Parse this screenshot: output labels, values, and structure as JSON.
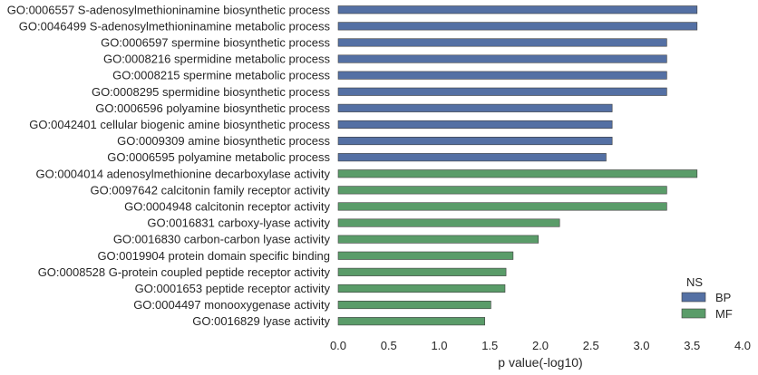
{
  "chart_data": {
    "type": "bar",
    "orientation": "horizontal",
    "xlabel": "p value(-log10)",
    "ylabel": "",
    "xlim": [
      0,
      4.0
    ],
    "x_ticks": [
      "0.0",
      "0.5",
      "1.0",
      "1.5",
      "2.0",
      "2.5",
      "3.0",
      "3.5",
      "4.0"
    ],
    "grid": false,
    "legend": {
      "title": "NS",
      "position": "bottom-right",
      "entries": [
        {
          "label": "BP",
          "color": "#5470a4"
        },
        {
          "label": "MF",
          "color": "#5a9c69"
        }
      ]
    },
    "series": [
      {
        "name": "BP",
        "color": "#5470a4",
        "categories": [
          "GO:0006557 S-adenosylmethioninamine biosynthetic process",
          "GO:0046499 S-adenosylmethioninamine metabolic process",
          "GO:0006597 spermine biosynthetic process",
          "GO:0008216 spermidine metabolic process",
          "GO:0008215 spermine metabolic process",
          "GO:0008295 spermidine biosynthetic process",
          "GO:0006596 polyamine biosynthetic process",
          "GO:0042401 cellular biogenic amine biosynthetic process",
          "GO:0009309 amine biosynthetic process",
          "GO:0006595 polyamine metabolic process"
        ],
        "values": [
          3.55,
          3.55,
          3.25,
          3.25,
          3.25,
          3.25,
          2.71,
          2.71,
          2.71,
          2.65
        ]
      },
      {
        "name": "MF",
        "color": "#5a9c69",
        "categories": [
          "GO:0004014 adenosylmethionine decarboxylase activity",
          "GO:0097642 calcitonin family receptor activity",
          "GO:0004948 calcitonin receptor activity",
          "GO:0016831 carboxy-lyase activity",
          "GO:0016830 carbon-carbon lyase activity",
          "GO:0019904 protein domain specific binding",
          "GO:0008528 G-protein coupled peptide receptor activity",
          "GO:0001653 peptide receptor activity",
          "GO:0004497 monooxygenase activity",
          "GO:0016829 lyase activity"
        ],
        "values": [
          3.55,
          3.25,
          3.25,
          2.19,
          1.98,
          1.73,
          1.66,
          1.65,
          1.51,
          1.45
        ]
      }
    ]
  }
}
